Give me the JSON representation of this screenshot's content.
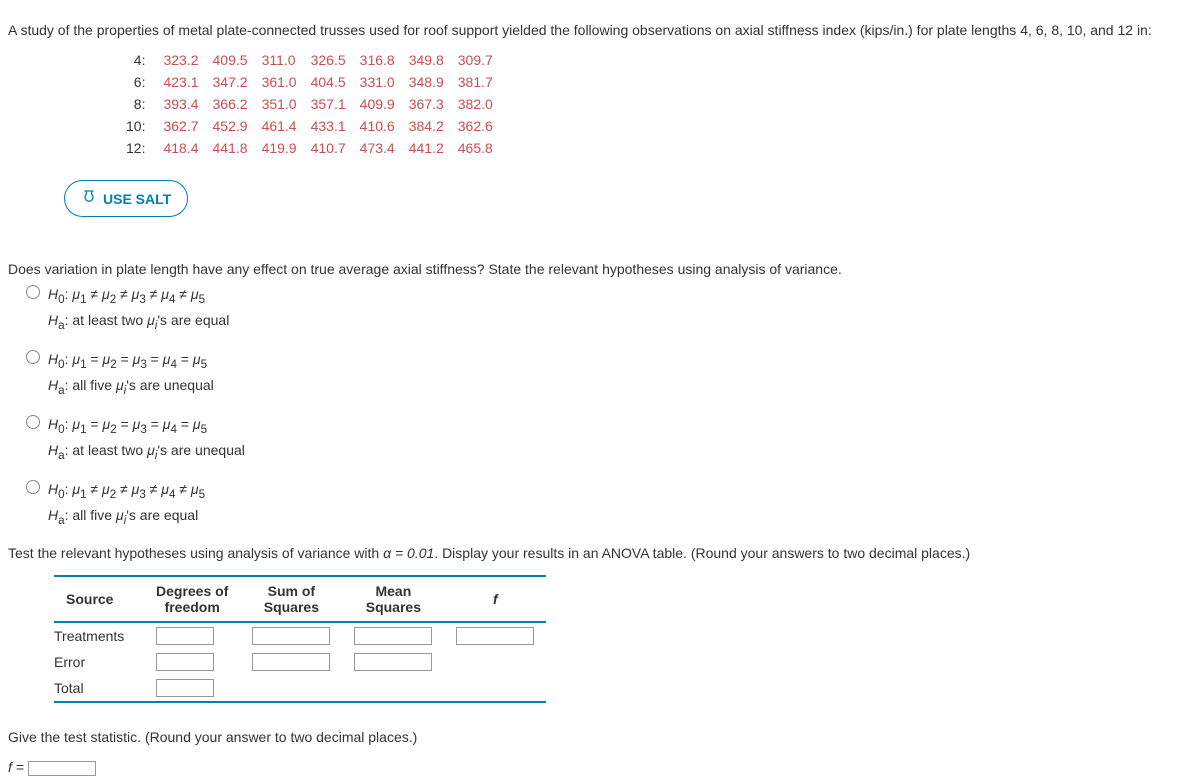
{
  "intro": "A study of the properties of metal plate-connected trusses used for roof support yielded the following observations on axial stiffness index (kips/in.) for plate lengths 4, 6, 8, 10, and 12 in:",
  "data_rows": [
    {
      "label": "4:",
      "vals": [
        "323.2",
        "409.5",
        "311.0",
        "326.5",
        "316.8",
        "349.8",
        "309.7"
      ]
    },
    {
      "label": "6:",
      "vals": [
        "423.1",
        "347.2",
        "361.0",
        "404.5",
        "331.0",
        "348.9",
        "381.7"
      ]
    },
    {
      "label": "8:",
      "vals": [
        "393.4",
        "366.2",
        "351.0",
        "357.1",
        "409.9",
        "367.3",
        "382.0"
      ]
    },
    {
      "label": "10:",
      "vals": [
        "362.7",
        "452.9",
        "461.4",
        "433.1",
        "410.6",
        "384.2",
        "362.6"
      ]
    },
    {
      "label": "12:",
      "vals": [
        "418.4",
        "441.8",
        "419.9",
        "410.7",
        "473.4",
        "441.2",
        "465.8"
      ]
    }
  ],
  "salt_button": "USE SALT",
  "question_text": "Does variation in plate length have any effect on true average axial stiffness? State the relevant hypotheses using analysis of variance.",
  "options": [
    {
      "h0_html": "<i>H</i><sub>0</sub>: <i>μ</i><sub>1</sub> ≠ <i>μ</i><sub>2</sub> ≠ <i>μ</i><sub>3</sub> ≠ <i>μ</i><sub>4</sub> ≠ <i>μ</i><sub>5</sub>",
      "ha_html": "<i>H</i><sub>a</sub>: at least two <i>μ<sub>i</sub></i>'s are equal"
    },
    {
      "h0_html": "<i>H</i><sub>0</sub>: <i>μ</i><sub>1</sub> = <i>μ</i><sub>2</sub> = <i>μ</i><sub>3</sub> = <i>μ</i><sub>4</sub> = <i>μ</i><sub>5</sub>",
      "ha_html": "<i>H</i><sub>a</sub>: all five <i>μ<sub>i</sub></i>'s are unequal"
    },
    {
      "h0_html": "<i>H</i><sub>0</sub>: <i>μ</i><sub>1</sub> = <i>μ</i><sub>2</sub> = <i>μ</i><sub>3</sub> = <i>μ</i><sub>4</sub> = <i>μ</i><sub>5</sub>",
      "ha_html": "<i>H</i><sub>a</sub>: at least two <i>μ<sub>i</sub></i>'s are unequal"
    },
    {
      "h0_html": "<i>H</i><sub>0</sub>: <i>μ</i><sub>1</sub> ≠ <i>μ</i><sub>2</sub> ≠ <i>μ</i><sub>3</sub> ≠ <i>μ</i><sub>4</sub> ≠ <i>μ</i><sub>5</sub>",
      "ha_html": "<i>H</i><sub>a</sub>: all five <i>μ<sub>i</sub></i>'s are equal"
    }
  ],
  "test_line_prefix": "Test the relevant hypotheses using analysis of variance with ",
  "test_alpha": "α = 0.01",
  "test_line_suffix": ". Display your results in an ANOVA table. (Round your answers to two decimal places.)",
  "anova": {
    "headers": [
      "Source",
      "Degrees of\nfreedom",
      "Sum of\nSquares",
      "Mean\nSquares",
      "f"
    ],
    "rows": [
      {
        "label": "Treatments",
        "cells": [
          "df",
          "ss",
          "ms",
          "f"
        ]
      },
      {
        "label": "Error",
        "cells": [
          "df",
          "ss",
          "ms",
          ""
        ]
      },
      {
        "label": "Total",
        "cells": [
          "df",
          "",
          "",
          ""
        ]
      }
    ]
  },
  "final_prompt": "Give the test statistic. (Round your answer to two decimal places.)",
  "f_label": "f ="
}
